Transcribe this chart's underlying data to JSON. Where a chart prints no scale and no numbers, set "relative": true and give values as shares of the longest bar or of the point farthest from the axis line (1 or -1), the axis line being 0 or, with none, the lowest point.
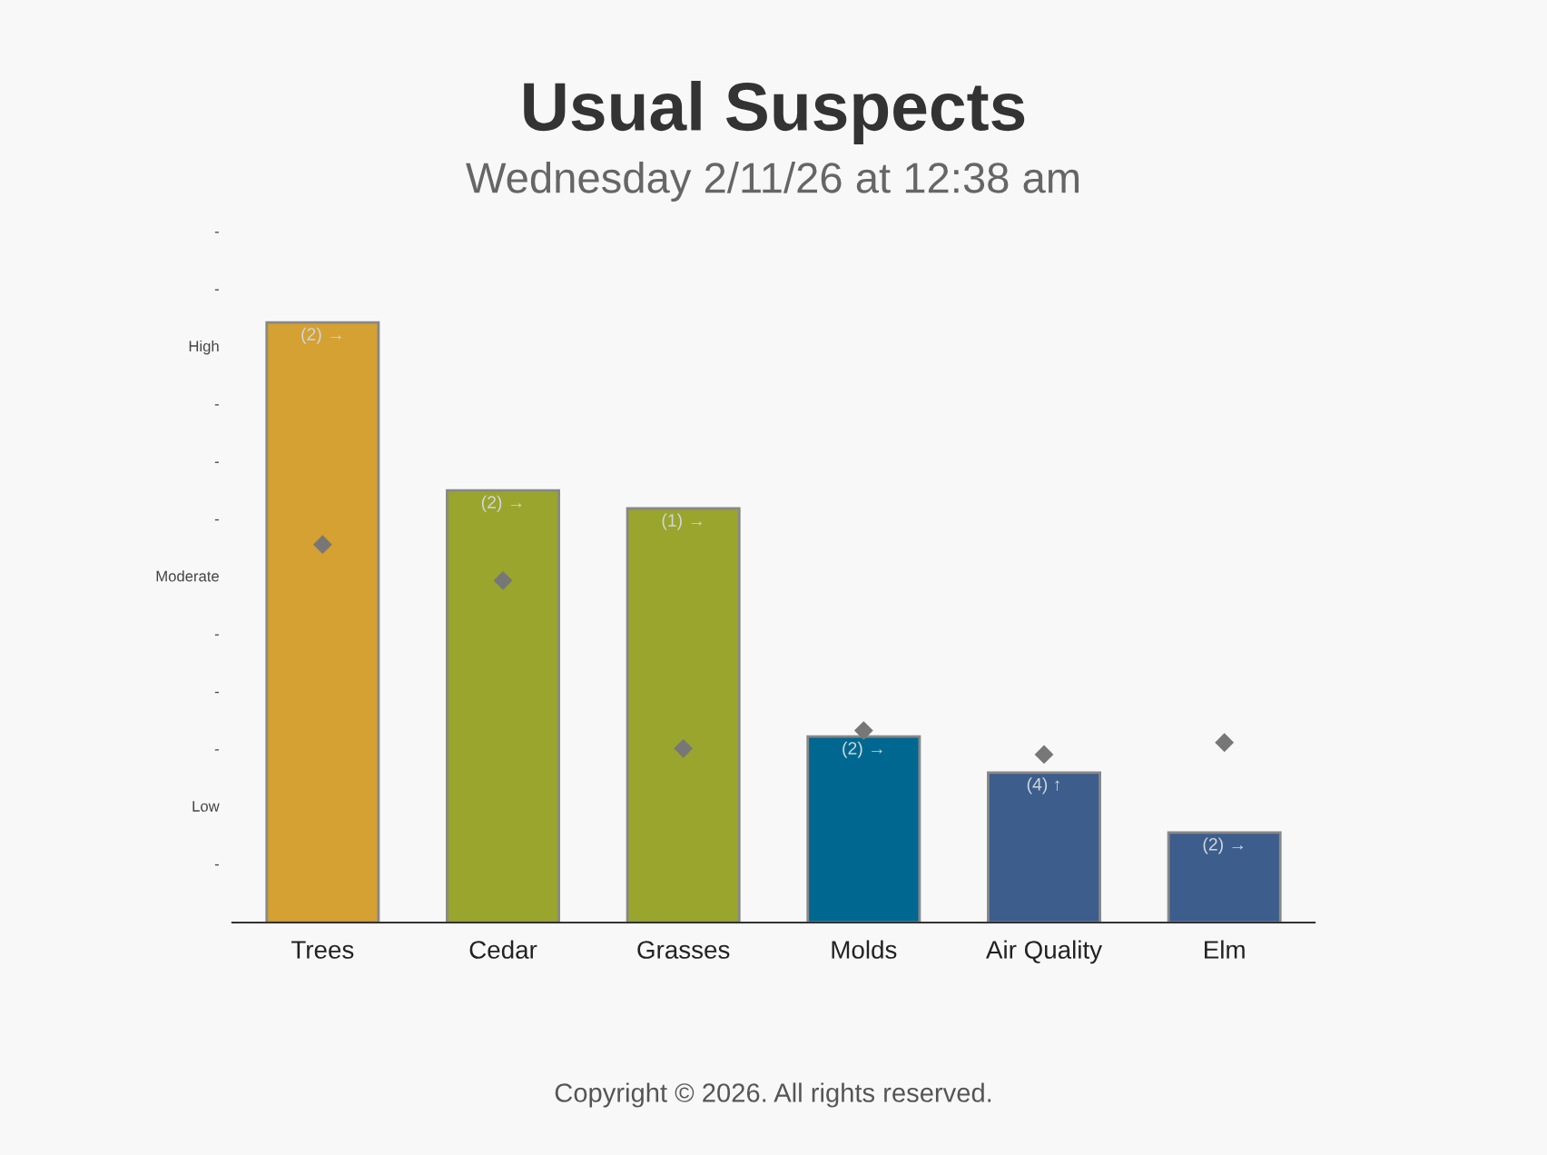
{
  "chart_data": {
    "type": "bar",
    "title": "Usual Suspects",
    "subtitle": "Wednesday 2/11/26 at 12:38 am",
    "categories": [
      "Trees",
      "Cedar",
      "Grasses",
      "Molds",
      "Air Quality",
      "Elm"
    ],
    "relative": true,
    "series": [
      {
        "colors": [
          "#d4a132",
          "#9aa52d",
          "#9aa52d",
          "#006890",
          "#3d5e8c",
          "#3d5e8c"
        ],
        "values": [
          1,
          0.72,
          0.69,
          0.31,
          0.25,
          0.15
        ]
      },
      {
        "type": "scatter",
        "color": "#777777",
        "marker": "diamond",
        "values": [
          0.63,
          0.57,
          0.29,
          0.32,
          0.28,
          0.3
        ]
      }
    ],
    "grid": false,
    "annotations": [
      "-",
      "Low",
      "-",
      "-",
      "-",
      "Moderate",
      "-",
      "-",
      "-",
      "High",
      "-",
      "-",
      {
        "text": "(2) →",
        "x": "Trees",
        "y": 1
      },
      {
        "text": "(2) →",
        "x": "Cedar",
        "y": 0.72
      },
      {
        "text": "(1) →",
        "x": "Grasses",
        "y": 0.69
      },
      {
        "text": "(2) →",
        "x": "Molds",
        "y": 0.31
      },
      {
        "text": "(4) ↑",
        "x": "Air Quality",
        "y": 0.25
      },
      {
        "text": "(2) →",
        "x": "Elm",
        "y": 0.15
      },
      "Copyright © 2026. All rights reserved."
    ]
  }
}
